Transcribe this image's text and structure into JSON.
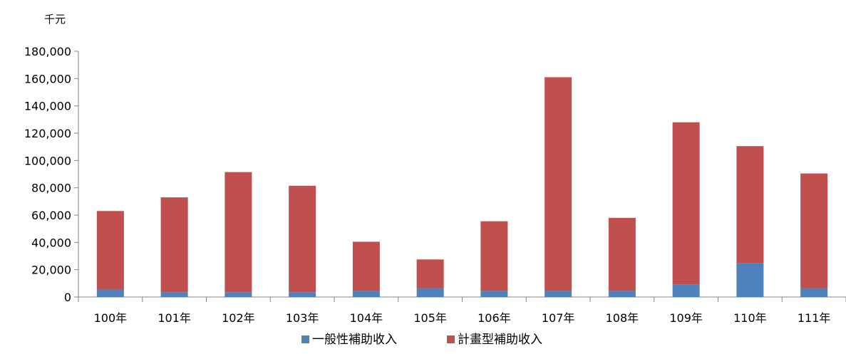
{
  "chart_data": {
    "type": "bar",
    "stacked": true,
    "unit_label": "千元",
    "categories": [
      "100年",
      "101年",
      "102年",
      "103年",
      "104年",
      "105年",
      "106年",
      "107年",
      "108年",
      "109年",
      "110年",
      "111年"
    ],
    "series": [
      {
        "name": "一般性補助收入",
        "color": "#4F81BD",
        "values": [
          5500,
          3500,
          3500,
          3500,
          4500,
          6500,
          4500,
          4500,
          4500,
          9000,
          25000,
          6500
        ]
      },
      {
        "name": "計畫型補助收入",
        "color": "#C0504D",
        "values": [
          57500,
          69500,
          88000,
          78000,
          36000,
          21000,
          51000,
          156500,
          53500,
          119000,
          85500,
          84000
        ]
      }
    ],
    "ylim": [
      0,
      180000
    ],
    "yticks": [
      "0",
      "20,000",
      "40,000",
      "60,000",
      "80,000",
      "100,000",
      "120,000",
      "140,000",
      "160,000",
      "180,000"
    ],
    "grid": false,
    "legend_position": "bottom"
  }
}
